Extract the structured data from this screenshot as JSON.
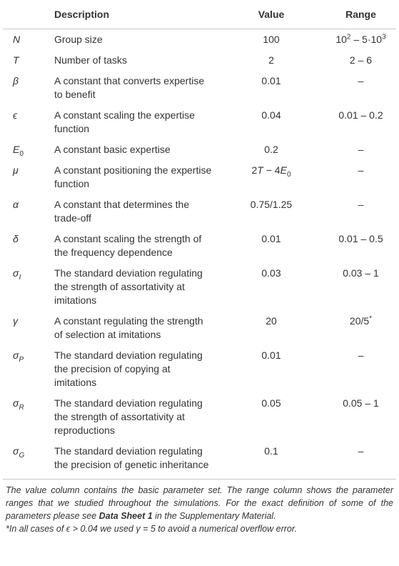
{
  "table": {
    "header": [
      "Description",
      "Value",
      "Range"
    ],
    "rows": [
      {
        "symbol": {
          "base": "N"
        },
        "description": "Group size",
        "value": "100",
        "range": [
          {
            "text": "10"
          },
          {
            "text": "2",
            "style": "sup"
          },
          {
            "text": " – 5·10"
          },
          {
            "text": "3",
            "style": "sup"
          }
        ]
      },
      {
        "symbol": {
          "base": "T"
        },
        "description": "Number of tasks",
        "value": "2",
        "range": "2 – 6"
      },
      {
        "symbol": {
          "base": "β"
        },
        "description": "A constant that converts expertise to benefit",
        "value": "0.01",
        "range": "–"
      },
      {
        "symbol": {
          "base": "ϵ"
        },
        "description": "A constant scaling the expertise function",
        "value": "0.04",
        "range": "0.01 – 0.2"
      },
      {
        "symbol": {
          "base": "E",
          "sub": "0"
        },
        "description": "A constant basic expertise",
        "value": "0.2",
        "range": "–"
      },
      {
        "symbol": {
          "base": "μ"
        },
        "description": "A constant positioning the expertise function",
        "value": [
          {
            "text": "2"
          },
          {
            "text": "T",
            "style": "italic"
          },
          {
            "text": " − 4"
          },
          {
            "text": "E",
            "style": "italic"
          },
          {
            "text": "0",
            "style": "sub"
          }
        ],
        "range": "–"
      },
      {
        "symbol": {
          "base": "α"
        },
        "description": "A constant that determines the trade-off",
        "value": "0.75/1.25",
        "range": "–"
      },
      {
        "symbol": {
          "base": "δ"
        },
        "description": "A constant scaling the strength of the frequency dependence",
        "value": "0.01",
        "range": "0.01 – 0.5"
      },
      {
        "symbol": {
          "base": "σ",
          "sub": "I"
        },
        "description": "The standard deviation regulating the strength of assortativity at imitations",
        "value": "0.03",
        "range": "0.03 – 1"
      },
      {
        "symbol": {
          "base": "γ"
        },
        "description": "A constant regulating the strength of selection at imitations",
        "value": "20",
        "range": [
          {
            "text": "20/5"
          },
          {
            "text": "*",
            "style": "sup"
          }
        ]
      },
      {
        "symbol": {
          "base": "σ",
          "sub": "P"
        },
        "description": "The standard deviation regulating the precision of copying at imitations",
        "value": "0.01",
        "range": "–"
      },
      {
        "symbol": {
          "base": "σ",
          "sub": "R"
        },
        "description": "The standard deviation regulating the strength of assortativity at reproductions",
        "value": "0.05",
        "range": "0.05 – 1"
      },
      {
        "symbol": {
          "base": "σ",
          "sub": "G"
        },
        "description": "The standard deviation regulating the precision of genetic inheritance",
        "value": "0.1",
        "range": "–"
      }
    ]
  },
  "notes": [
    [
      {
        "text": "The value column contains the basic parameter set. The range column shows the parameter ranges that we studied throughout the simulations. For the exact definition of some of the parameters please see "
      },
      {
        "text": "Data Sheet 1",
        "style": "bold"
      },
      {
        "text": " in the Supplementary Material."
      }
    ],
    [
      {
        "text": "*In all cases of ϵ > 0.04 we used γ = 5 to avoid a numerical overflow error."
      }
    ]
  ]
}
